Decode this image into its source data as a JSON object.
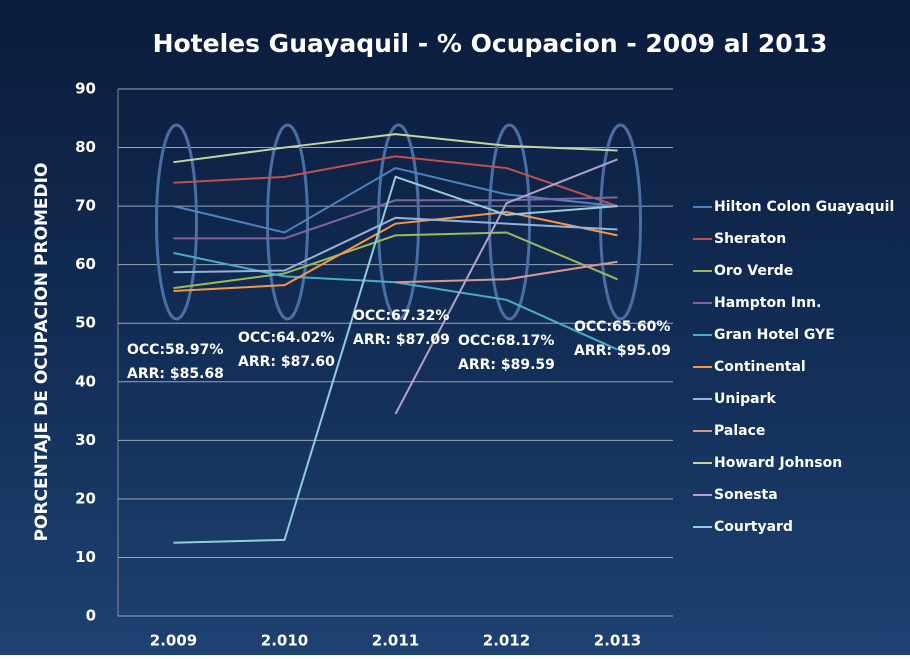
{
  "chart_data": {
    "type": "line",
    "title": "Hoteles Guayaquil -  % Ocupacion - 2009 al 2013",
    "y_label": "PORCENTAJE DE OCUPACION PROMEDIO",
    "categories": [
      "2.009",
      "2.010",
      "2.011",
      "2.012",
      "2.013"
    ],
    "ylim": [
      0,
      90
    ],
    "yticks": [
      0,
      10,
      20,
      30,
      40,
      50,
      60,
      70,
      80,
      90
    ],
    "grid": true,
    "legend": "right",
    "series": [
      {
        "name": "Hilton Colon Guayaquil",
        "color": "#4f81bd",
        "values": [
          70,
          65.5,
          76.5,
          72,
          70
        ]
      },
      {
        "name": "Sheraton",
        "color": "#c0504d",
        "values": [
          74,
          75,
          78.5,
          76.5,
          70
        ]
      },
      {
        "name": "Oro Verde",
        "color": "#9bbb59",
        "values": [
          56,
          58.5,
          65,
          65.5,
          57.5
        ]
      },
      {
        "name": "Hampton Inn.",
        "color": "#8064a2",
        "values": [
          64.5,
          64.5,
          71,
          71,
          71.5
        ]
      },
      {
        "name": "Gran Hotel  GYE",
        "color": "#4bacc6",
        "values": [
          62,
          58,
          57,
          54,
          45.5
        ]
      },
      {
        "name": "Continental",
        "color": "#f79646",
        "values": [
          55.5,
          56.5,
          67,
          69,
          65
        ]
      },
      {
        "name": "Unipark",
        "color": "#95b3d7",
        "values": [
          58.7,
          59,
          68,
          67,
          66
        ]
      },
      {
        "name": "Palace",
        "color": "#d99694",
        "values": [
          null,
          null,
          57,
          57.5,
          60.5
        ]
      },
      {
        "name": "Howard Johnson",
        "color": "#c3d69b",
        "values": [
          77.5,
          80,
          82.3,
          80.3,
          79.5
        ]
      },
      {
        "name": "Sonesta",
        "color": "#b3a2c7",
        "values": [
          null,
          null,
          34.5,
          70.5,
          78
        ]
      },
      {
        "name": "Courtyard",
        "color": "#93cddd",
        "values": [
          12.5,
          13,
          75,
          68.5,
          70
        ]
      }
    ],
    "annotations": [
      {
        "occ": "OCC:58.97%",
        "arr": "ARR: $85.68"
      },
      {
        "occ": "OCC:64.02%",
        "arr": "ARR: $87.60"
      },
      {
        "occ": "OCC:67.32%",
        "arr": "ARR: $87.09"
      },
      {
        "occ": "OCC:68.17%",
        "arr": "ARR: $89.59"
      },
      {
        "occ": "OCC:65.60%",
        "arr": "ARR: $95.09"
      }
    ]
  }
}
